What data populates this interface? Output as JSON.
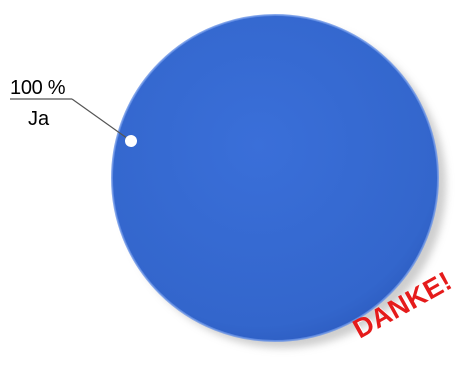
{
  "chart_data": {
    "type": "pie",
    "slices": [
      {
        "label": "Ja",
        "value": 100,
        "value_label": "100 %"
      }
    ],
    "colors": {
      "slice": "#3366cc",
      "rim": "#6a93e6",
      "shadow": "#cfcfcf",
      "leader": "#555555"
    }
  },
  "stamp": {
    "text": "DANKE!",
    "color": "#e51b1b"
  }
}
